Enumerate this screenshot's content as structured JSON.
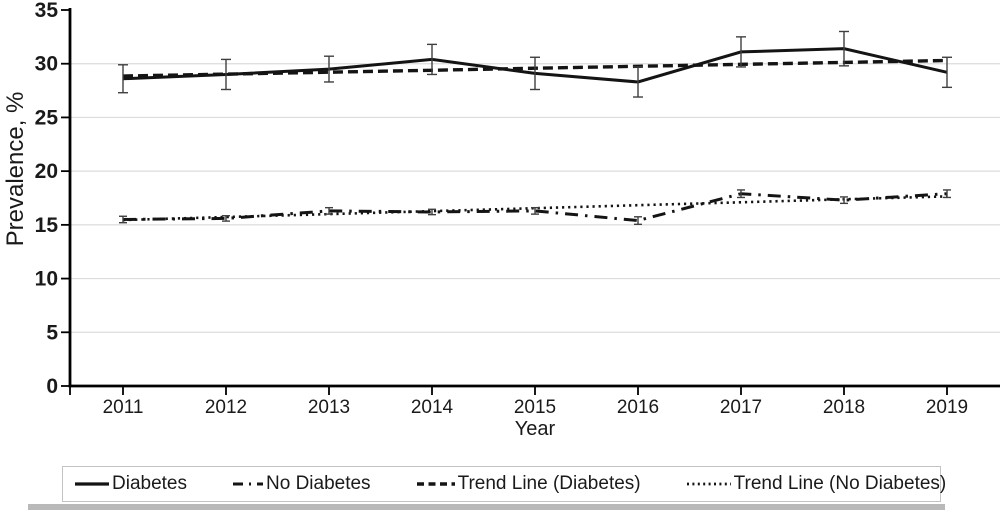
{
  "chart_data": {
    "type": "line",
    "title": "",
    "xlabel": "Year",
    "ylabel": "Prevalence, %",
    "x": [
      2011,
      2012,
      2013,
      2014,
      2015,
      2016,
      2017,
      2018,
      2019
    ],
    "ylim": [
      0,
      35
    ],
    "ytick_step": 5,
    "grid": true,
    "legend_position": "bottom",
    "series": [
      {
        "name": "Diabetes",
        "style": "solid",
        "values": [
          28.6,
          29.0,
          29.5,
          30.4,
          29.1,
          28.3,
          31.1,
          31.4,
          29.2
        ],
        "error": [
          1.3,
          1.4,
          1.2,
          1.4,
          1.5,
          1.4,
          1.4,
          1.6,
          1.4
        ]
      },
      {
        "name": "No Diabetes",
        "style": "dashdot",
        "values": [
          15.5,
          15.6,
          16.3,
          16.2,
          16.3,
          15.4,
          17.9,
          17.3,
          17.9
        ],
        "error": [
          0.3,
          0.25,
          0.3,
          0.25,
          0.3,
          0.35,
          0.35,
          0.3,
          0.35
        ]
      },
      {
        "name": "Trend Line (Diabetes)",
        "style": "dashed",
        "values": [
          28.85,
          29.03,
          29.21,
          29.39,
          29.58,
          29.76,
          29.94,
          30.12,
          30.3
        ]
      },
      {
        "name": "Trend Line (No Diabetes)",
        "style": "dotted",
        "values": [
          15.45,
          15.73,
          16.0,
          16.28,
          16.55,
          16.83,
          17.1,
          17.38,
          17.65
        ]
      }
    ]
  },
  "colors": {
    "line": "#141414",
    "grid": "#dcdcdc",
    "axis": "#000000",
    "error_bar": "#3f3f3f",
    "text": "#1a1a1a",
    "legend_border": "#c3c3c3",
    "bottom_strip": "#b9b9b9",
    "background": "#ffffff"
  }
}
